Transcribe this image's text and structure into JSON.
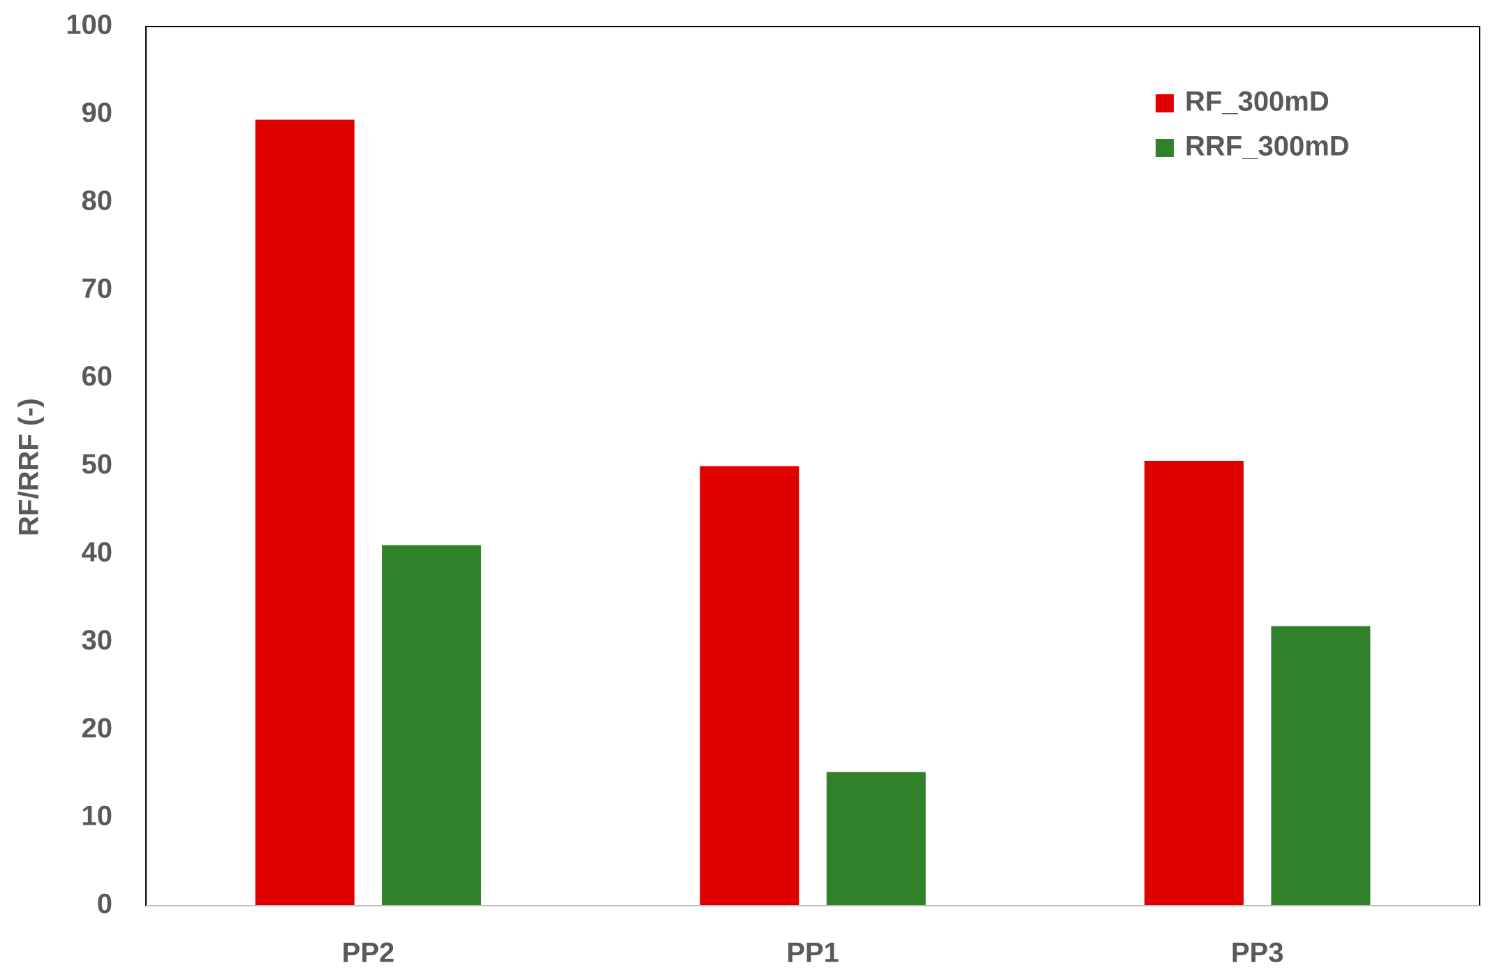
{
  "chart_data": {
    "type": "bar",
    "y_label": "RF/RRF (-)",
    "categories": [
      "PP2",
      "PP1",
      "PP3"
    ],
    "series": [
      {
        "name": "RF_300mD",
        "color": "#e00000",
        "values": [
          89.4,
          50,
          50.6
        ]
      },
      {
        "name": "RRF_300mD",
        "color": "#31802a",
        "values": [
          41,
          15.2,
          31.8
        ]
      }
    ],
    "ylim": [
      0,
      100
    ],
    "yticks": [
      0,
      10,
      20,
      30,
      40,
      50,
      60,
      70,
      80,
      90,
      100
    ],
    "legend": "upper right"
  }
}
